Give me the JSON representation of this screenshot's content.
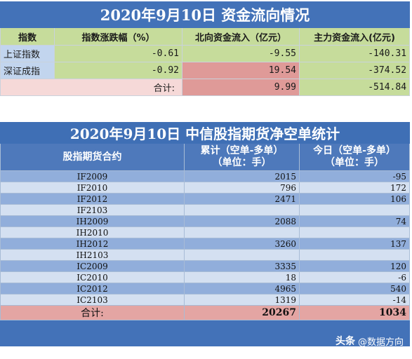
{
  "capital_flow": {
    "title": "2020年9月10日 资金流向情况",
    "headers": [
      "指数",
      "指数涨跌幅（%）",
      "北向资金流入（亿元）",
      "主力资金流入(亿元)"
    ],
    "rows": [
      {
        "index": "上证指数",
        "change": "-0.61",
        "north": "-9.55",
        "main": "-140.31"
      },
      {
        "index": "深证成指",
        "change": "-0.92",
        "north": "19.54",
        "main": "-374.52"
      }
    ],
    "total_label": "合计:",
    "total_north": "9.99",
    "total_main": "-514.84"
  },
  "futures": {
    "title": "2020年9月10日 中信股指期货净空单统计",
    "col1": "股指期货合约",
    "col2_line1": "累计（空单-多单）",
    "col2_line2": "（单位：手）",
    "col3_line1": "今日（空单-多单）",
    "col3_line2": "（单位：手）",
    "rows": [
      {
        "contract": "IF2009",
        "cum": "2015",
        "today": "-95"
      },
      {
        "contract": "IF2010",
        "cum": "796",
        "today": "172"
      },
      {
        "contract": "IF2012",
        "cum": "2471",
        "today": "106"
      },
      {
        "contract": "IF2103",
        "cum": "",
        "today": ""
      },
      {
        "contract": "IH2009",
        "cum": "2088",
        "today": "74"
      },
      {
        "contract": "IH2010",
        "cum": "",
        "today": ""
      },
      {
        "contract": "IH2012",
        "cum": "3260",
        "today": "137"
      },
      {
        "contract": "IH2103",
        "cum": "",
        "today": ""
      },
      {
        "contract": "IC2009",
        "cum": "3335",
        "today": "120"
      },
      {
        "contract": "IC2010",
        "cum": "18",
        "today": "-6"
      },
      {
        "contract": "IC2012",
        "cum": "4965",
        "today": "540"
      },
      {
        "contract": "IC2103",
        "cum": "1319",
        "today": "-14"
      }
    ],
    "total_label": "合计:",
    "total_cum": "20267",
    "total_today": "1034"
  },
  "watermark": {
    "logo": "头条",
    "handle": "@数据方向"
  }
}
